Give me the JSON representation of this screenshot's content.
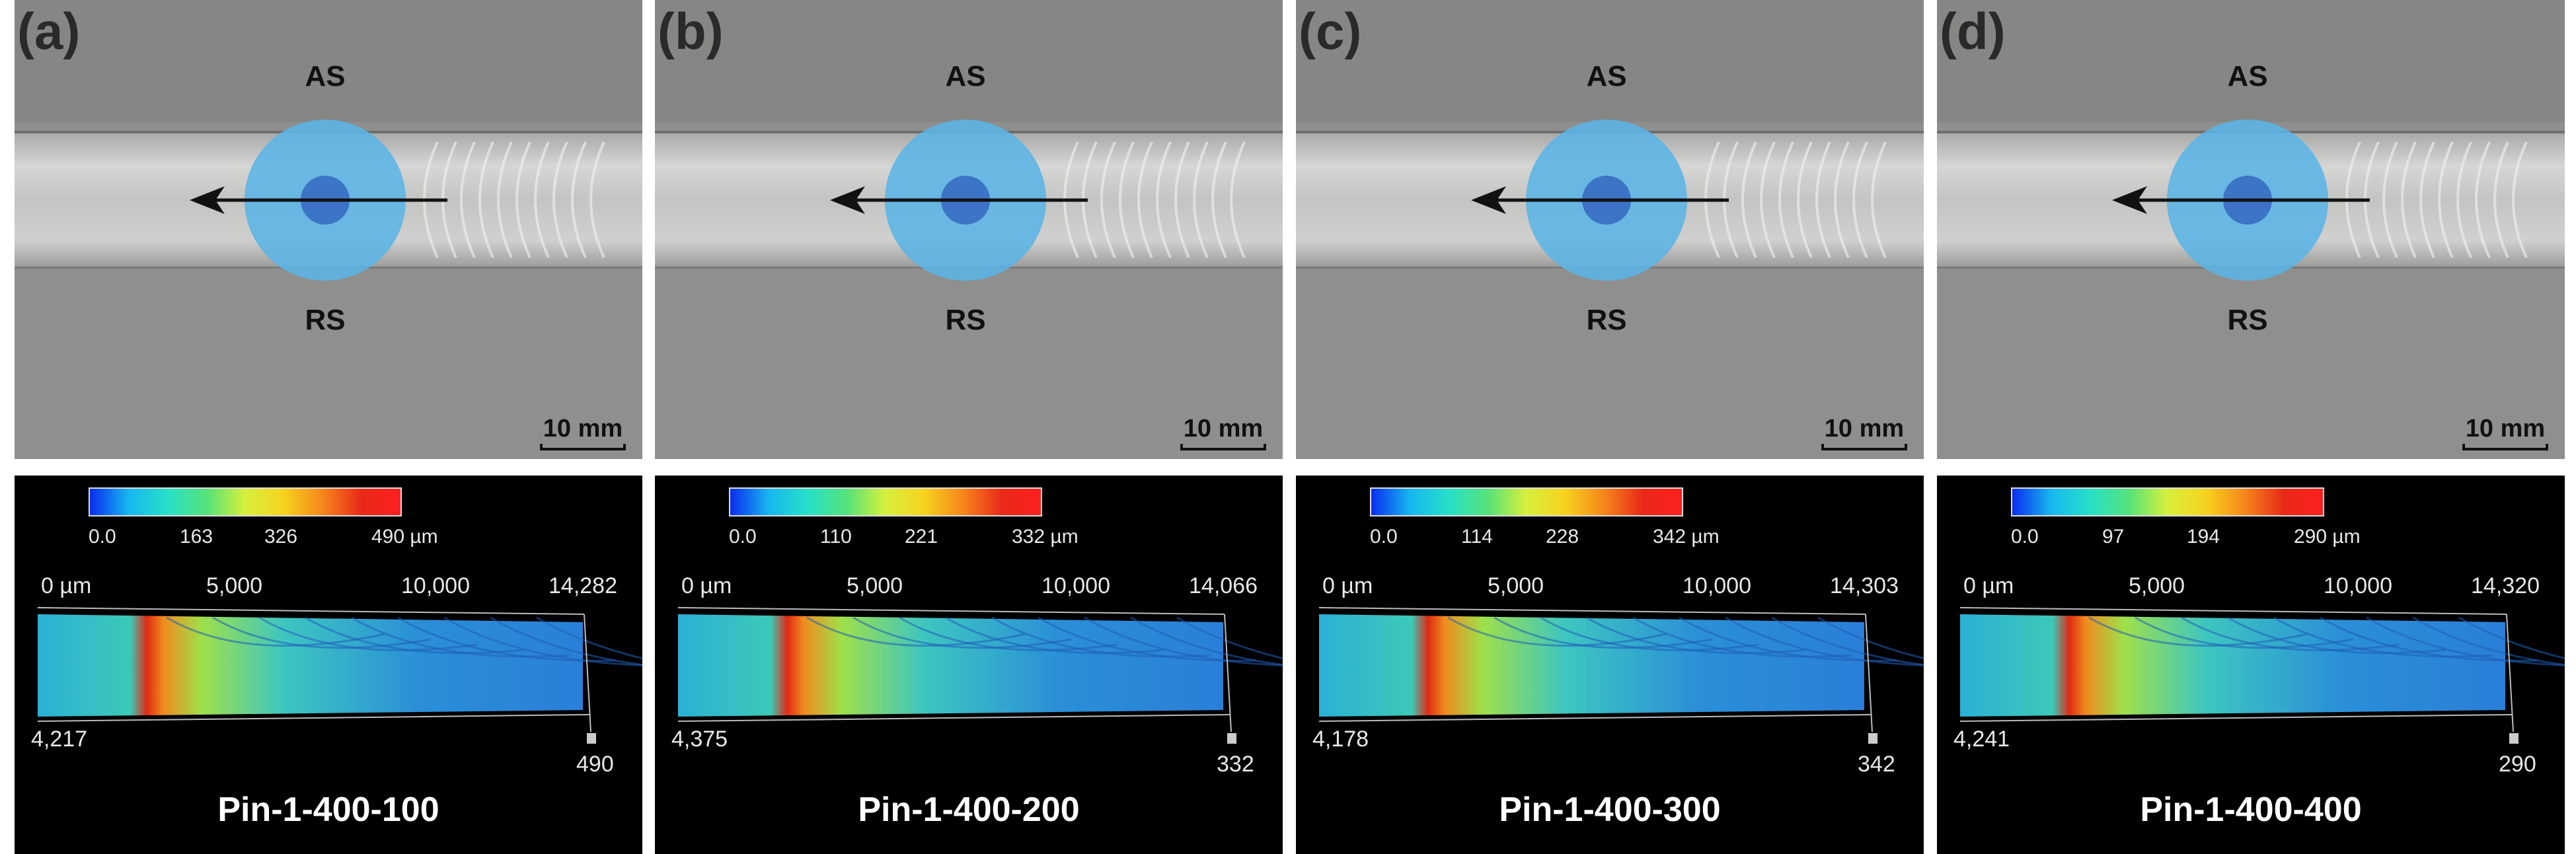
{
  "colors": {
    "tool": "#5bb4e6",
    "pin": "#3a70c4",
    "arrow": "#111111",
    "colormap": [
      "#0a2cf0",
      "#17b7f0",
      "#27e0c8",
      "#55e27a",
      "#d7f03c",
      "#f6d21e",
      "#f5861b",
      "#e92918",
      "#ff2020"
    ]
  },
  "panels": [
    {
      "label": "(a)",
      "as": "AS",
      "rs": "RS",
      "scale": "10 mm",
      "colorbar_ticks": [
        "0.0",
        "163",
        "326",
        "490 µm"
      ],
      "axis": {
        "x0": "0 µm",
        "x1": "5,000",
        "x2": "10,000",
        "xmax": "14,282",
        "ymax": "4,217",
        "zmax": "490"
      },
      "sample": "Pin-1-400-100"
    },
    {
      "label": "(b)",
      "as": "AS",
      "rs": "RS",
      "scale": "10 mm",
      "colorbar_ticks": [
        "0.0",
        "110",
        "221",
        "332 µm"
      ],
      "axis": {
        "x0": "0 µm",
        "x1": "5,000",
        "x2": "10,000",
        "xmax": "14,066",
        "ymax": "4,375",
        "zmax": "332"
      },
      "sample": "Pin-1-400-200"
    },
    {
      "label": "(c)",
      "as": "AS",
      "rs": "RS",
      "scale": "10 mm",
      "colorbar_ticks": [
        "0.0",
        "114",
        "228",
        "342 µm"
      ],
      "axis": {
        "x0": "0 µm",
        "x1": "5,000",
        "x2": "10,000",
        "xmax": "14,303",
        "ymax": "4,178",
        "zmax": "342"
      },
      "sample": "Pin-1-400-300"
    },
    {
      "label": "(d)",
      "as": "AS",
      "rs": "RS",
      "scale": "10 mm",
      "colorbar_ticks": [
        "0.0",
        "97",
        "194",
        "290 µm"
      ],
      "axis": {
        "x0": "0 µm",
        "x1": "5,000",
        "x2": "10,000",
        "xmax": "14,320",
        "ymax": "4,241",
        "zmax": "290"
      },
      "sample": "Pin-1-400-400"
    }
  ]
}
